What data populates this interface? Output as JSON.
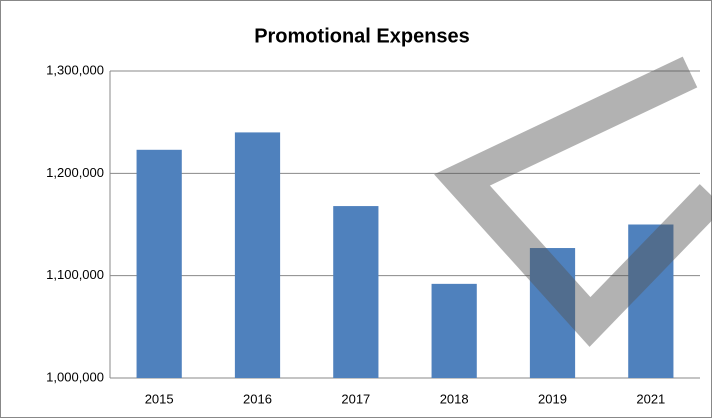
{
  "chart_data": {
    "type": "bar",
    "title": "Promotional Expenses",
    "categories": [
      "2015",
      "2016",
      "2017",
      "2018",
      "2019",
      "2021"
    ],
    "values": [
      1223000,
      1240000,
      1168000,
      1092000,
      1127000,
      1150000
    ],
    "color": "#4f81bd",
    "ylim": [
      1000000,
      1300000
    ],
    "yticks": [
      {
        "value": 1000000,
        "label": "1,000,000"
      },
      {
        "value": 1100000,
        "label": "1,100,000"
      },
      {
        "value": 1200000,
        "label": "1,200,000"
      },
      {
        "value": 1300000,
        "label": "1,300,000"
      }
    ],
    "grid": true
  }
}
